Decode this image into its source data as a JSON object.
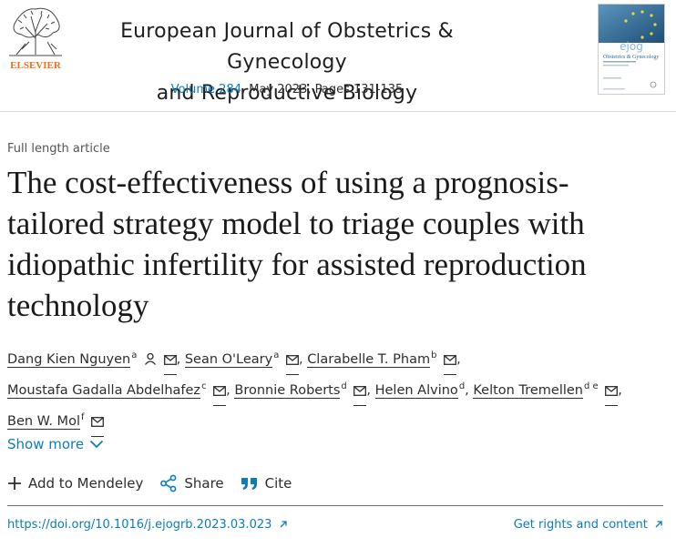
{
  "header": {
    "publisher_logo_label": "ELSEVIER",
    "journal_title_line1": "European Journal of Obstetrics & Gynecology",
    "journal_title_line2": "and Reproductive Biology",
    "volume_link": "Volume 284",
    "issue_info": ", May 2023, Pages 131-135",
    "cover_title": "Obstetrics & Gynecology",
    "cover_abbrev": "ejog"
  },
  "article": {
    "type": "Full length article",
    "title": "The cost-effectiveness of using a prognosis-tailored strategy model to triage couples with idiopathic infertility for assisted reproduction technology"
  },
  "authors": [
    {
      "name": "Dang Kien Nguyen",
      "sup": "a"
    },
    {
      "name": "Sean O'Leary",
      "sup": "a"
    },
    {
      "name": "Clarabelle T. Pham",
      "sup": "b"
    },
    {
      "name": "Moustafa Gadalla Abdelhafez",
      "sup": "c"
    },
    {
      "name": "Bronnie Roberts",
      "sup": "d"
    },
    {
      "name": "Helen Alvino",
      "sup": "d"
    },
    {
      "name": "Kelton Tremellen",
      "sup": "d e"
    },
    {
      "name": "Ben W. Mol",
      "sup": "f"
    }
  ],
  "show_more": "Show more",
  "actions": {
    "mendeley": "Add to Mendeley",
    "share": "Share",
    "cite": "Cite"
  },
  "footer": {
    "doi": "https://doi.org/10.1016/j.ejogrb.2023.03.023",
    "rights": "Get rights and content"
  },
  "colors": {
    "link": "#0c7dbb",
    "elsevier_orange": "#e9711c"
  }
}
